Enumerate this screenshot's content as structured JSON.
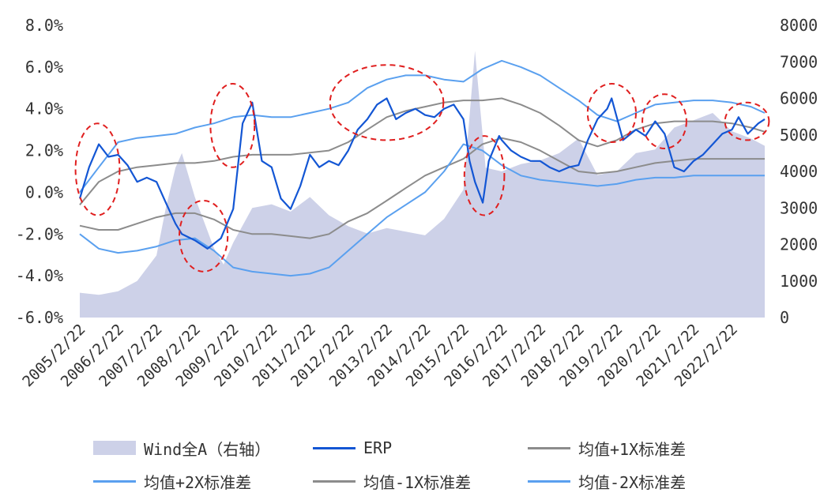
{
  "chart_data": {
    "type": "line",
    "title": "",
    "xlabel": "",
    "ylabel": "",
    "y_left": {
      "min": -6,
      "max": 8,
      "ticks": [
        "-6.0%",
        "-4.0%",
        "-2.0%",
        "0.0%",
        "2.0%",
        "4.0%",
        "6.0%",
        "8.0%"
      ]
    },
    "y_right": {
      "min": 0,
      "max": 8000,
      "ticks": [
        "0",
        "1000",
        "2000",
        "3000",
        "4000",
        "5000",
        "6000",
        "7000",
        "8000"
      ]
    },
    "x_range": [
      "2005-02-22",
      "2022-12-31"
    ],
    "x_ticks": [
      "2005/2/22",
      "2006/2/22",
      "2007/2/22",
      "2008/2/22",
      "2009/2/22",
      "2010/2/22",
      "2011/2/22",
      "2012/2/22",
      "2013/2/22",
      "2014/2/22",
      "2015/2/22",
      "2016/2/22",
      "2017/2/22",
      "2018/2/22",
      "2019/2/22",
      "2020/2/22",
      "2021/2/22",
      "2022/2/22"
    ],
    "grid": false,
    "legend_position": "bottom",
    "series": [
      {
        "name": "Wind全A（右轴）",
        "kind": "area",
        "axis": "right",
        "color": "#cdd1e8",
        "x": [
          "2005-02-22",
          "2005-08-22",
          "2006-02-22",
          "2006-08-22",
          "2007-02-22",
          "2007-05-22",
          "2007-08-22",
          "2007-10-22",
          "2008-02-22",
          "2008-08-22",
          "2008-11-22",
          "2009-02-22",
          "2009-08-22",
          "2010-02-22",
          "2010-08-22",
          "2011-02-22",
          "2011-08-22",
          "2012-02-22",
          "2012-08-22",
          "2013-02-22",
          "2013-08-22",
          "2014-02-22",
          "2014-08-22",
          "2015-02-22",
          "2015-06-12",
          "2015-09-22",
          "2016-02-22",
          "2016-08-22",
          "2017-02-22",
          "2017-08-22",
          "2018-02-22",
          "2018-08-22",
          "2019-02-22",
          "2019-08-22",
          "2020-02-22",
          "2020-08-22",
          "2021-02-22",
          "2021-08-22",
          "2022-02-22",
          "2022-08-22",
          "2022-12-31"
        ],
        "values": [
          680,
          620,
          720,
          1000,
          1700,
          3000,
          4100,
          4500,
          3300,
          1900,
          1450,
          2050,
          3000,
          3100,
          2900,
          3300,
          2800,
          2500,
          2300,
          2450,
          2350,
          2250,
          2700,
          3500,
          7300,
          4100,
          4000,
          4200,
          4300,
          4500,
          4900,
          3900,
          4000,
          4500,
          4600,
          5200,
          5400,
          5600,
          5100,
          4900,
          4700
        ]
      },
      {
        "name": "ERP",
        "kind": "line",
        "axis": "left",
        "color": "#1356d4",
        "x": [
          "2005-02-22",
          "2005-05-22",
          "2005-08-22",
          "2005-11-22",
          "2006-02-22",
          "2006-05-22",
          "2006-08-22",
          "2006-11-22",
          "2007-02-22",
          "2007-05-22",
          "2007-08-22",
          "2007-10-22",
          "2008-02-22",
          "2008-06-22",
          "2008-10-28",
          "2009-02-22",
          "2009-05-22",
          "2009-08-22",
          "2009-11-22",
          "2010-02-22",
          "2010-05-22",
          "2010-08-22",
          "2010-11-22",
          "2011-02-22",
          "2011-05-22",
          "2011-08-22",
          "2011-11-22",
          "2012-02-22",
          "2012-05-22",
          "2012-08-22",
          "2012-11-22",
          "2013-02-22",
          "2013-05-22",
          "2013-08-22",
          "2013-11-22",
          "2014-02-22",
          "2014-05-22",
          "2014-08-22",
          "2014-11-22",
          "2015-02-22",
          "2015-04-22",
          "2015-06-12",
          "2015-08-26",
          "2015-10-22",
          "2016-01-28",
          "2016-02-22",
          "2016-05-22",
          "2016-08-22",
          "2016-11-22",
          "2017-02-22",
          "2017-05-22",
          "2017-08-22",
          "2017-11-22",
          "2018-02-22",
          "2018-05-22",
          "2018-08-22",
          "2018-11-22",
          "2019-01-03",
          "2019-04-22",
          "2019-08-22",
          "2019-11-22",
          "2020-02-22",
          "2020-05-22",
          "2020-08-22",
          "2020-11-22",
          "2021-02-22",
          "2021-05-22",
          "2021-08-22",
          "2021-11-22",
          "2022-02-22",
          "2022-04-26",
          "2022-07-22",
          "2022-10-31",
          "2022-12-31"
        ],
        "values": [
          -0.3,
          1.2,
          2.3,
          1.7,
          1.8,
          1.3,
          0.5,
          0.7,
          0.5,
          -0.5,
          -1.5,
          -2.0,
          -2.3,
          -2.7,
          -2.2,
          -0.8,
          3.3,
          4.3,
          1.5,
          1.2,
          -0.3,
          -0.8,
          0.3,
          1.8,
          1.2,
          1.5,
          1.3,
          2.0,
          3.0,
          3.5,
          4.2,
          4.5,
          3.5,
          3.8,
          4.0,
          3.7,
          3.6,
          4.0,
          4.2,
          3.5,
          1.5,
          0.5,
          -0.5,
          1.5,
          2.7,
          2.5,
          2.0,
          1.7,
          1.5,
          1.5,
          1.2,
          1.0,
          1.2,
          1.3,
          2.5,
          3.5,
          4.0,
          4.5,
          2.5,
          3.0,
          2.7,
          3.4,
          2.8,
          1.2,
          1.0,
          1.5,
          1.8,
          2.3,
          2.8,
          3.0,
          3.6,
          2.8,
          3.3,
          3.5
        ]
      },
      {
        "name": "均值+1X标准差",
        "kind": "line",
        "axis": "left",
        "color": "#8c8c8c",
        "x": [
          "2005-02-22",
          "2005-08-22",
          "2006-02-22",
          "2006-08-22",
          "2007-02-22",
          "2007-08-22",
          "2008-02-22",
          "2008-08-22",
          "2009-02-22",
          "2009-08-22",
          "2010-02-22",
          "2010-08-22",
          "2011-02-22",
          "2011-08-22",
          "2012-02-22",
          "2012-08-22",
          "2013-02-22",
          "2013-08-22",
          "2014-02-22",
          "2014-08-22",
          "2015-02-22",
          "2015-08-22",
          "2016-02-22",
          "2016-08-22",
          "2017-02-22",
          "2017-08-22",
          "2018-02-22",
          "2018-08-22",
          "2019-02-22",
          "2019-08-22",
          "2020-02-22",
          "2020-08-22",
          "2021-02-22",
          "2021-08-22",
          "2022-02-22",
          "2022-08-22",
          "2022-12-31"
        ],
        "values": [
          -0.6,
          0.5,
          1.0,
          1.2,
          1.3,
          1.4,
          1.4,
          1.5,
          1.7,
          1.8,
          1.8,
          1.8,
          1.9,
          2.0,
          2.4,
          3.0,
          3.6,
          3.9,
          4.1,
          4.3,
          4.4,
          4.4,
          4.5,
          4.2,
          3.8,
          3.2,
          2.5,
          2.2,
          2.5,
          3.0,
          3.3,
          3.4,
          3.4,
          3.4,
          3.3,
          3.1,
          2.9
        ]
      },
      {
        "name": "均值+2X标准差",
        "kind": "line",
        "axis": "left",
        "color": "#5aa0ef",
        "x": [
          "2005-02-22",
          "2005-08-22",
          "2006-02-22",
          "2006-08-22",
          "2007-02-22",
          "2007-08-22",
          "2008-02-22",
          "2008-08-22",
          "2009-02-22",
          "2009-08-22",
          "2010-02-22",
          "2010-08-22",
          "2011-02-22",
          "2011-08-22",
          "2012-02-22",
          "2012-08-22",
          "2013-02-22",
          "2013-08-22",
          "2014-02-22",
          "2014-08-22",
          "2015-02-22",
          "2015-08-22",
          "2016-02-22",
          "2016-08-22",
          "2017-02-22",
          "2017-08-22",
          "2018-02-22",
          "2018-08-22",
          "2019-02-22",
          "2019-08-22",
          "2020-02-22",
          "2020-08-22",
          "2021-02-22",
          "2021-08-22",
          "2022-02-22",
          "2022-08-22",
          "2022-12-31"
        ],
        "values": [
          0.0,
          1.2,
          2.4,
          2.6,
          2.7,
          2.8,
          3.1,
          3.3,
          3.6,
          3.7,
          3.6,
          3.6,
          3.8,
          4.0,
          4.3,
          5.0,
          5.4,
          5.6,
          5.6,
          5.4,
          5.3,
          5.9,
          6.3,
          6.0,
          5.6,
          5.0,
          4.4,
          3.7,
          3.4,
          3.8,
          4.2,
          4.3,
          4.4,
          4.4,
          4.3,
          4.1,
          3.8
        ]
      },
      {
        "name": "均值-1X标准差",
        "kind": "line",
        "axis": "left",
        "color": "#8c8c8c",
        "x": [
          "2005-02-22",
          "2005-08-22",
          "2006-02-22",
          "2006-08-22",
          "2007-02-22",
          "2007-08-22",
          "2008-02-22",
          "2008-08-22",
          "2009-02-22",
          "2009-08-22",
          "2010-02-22",
          "2010-08-22",
          "2011-02-22",
          "2011-08-22",
          "2012-02-22",
          "2012-08-22",
          "2013-02-22",
          "2013-08-22",
          "2014-02-22",
          "2014-08-22",
          "2015-02-22",
          "2015-08-22",
          "2016-02-22",
          "2016-08-22",
          "2017-02-22",
          "2017-08-22",
          "2018-02-22",
          "2018-08-22",
          "2019-02-22",
          "2019-08-22",
          "2020-02-22",
          "2020-08-22",
          "2021-02-22",
          "2021-08-22",
          "2022-02-22",
          "2022-08-22",
          "2022-12-31"
        ],
        "values": [
          -1.6,
          -1.8,
          -1.8,
          -1.5,
          -1.2,
          -1.0,
          -1.0,
          -1.3,
          -1.8,
          -2.0,
          -2.0,
          -2.1,
          -2.2,
          -2.0,
          -1.4,
          -1.0,
          -0.4,
          0.2,
          0.8,
          1.2,
          1.6,
          2.3,
          2.6,
          2.4,
          2.0,
          1.5,
          1.0,
          0.9,
          1.0,
          1.2,
          1.4,
          1.5,
          1.6,
          1.6,
          1.6,
          1.6,
          1.6
        ]
      },
      {
        "name": "均值-2X标准差",
        "kind": "line",
        "axis": "left",
        "color": "#5aa0ef",
        "x": [
          "2005-02-22",
          "2005-08-22",
          "2006-02-22",
          "2006-08-22",
          "2007-02-22",
          "2007-08-22",
          "2008-02-22",
          "2008-08-22",
          "2009-02-22",
          "2009-08-22",
          "2010-02-22",
          "2010-08-22",
          "2011-02-22",
          "2011-08-22",
          "2012-02-22",
          "2012-08-22",
          "2013-02-22",
          "2013-08-22",
          "2014-02-22",
          "2014-08-22",
          "2015-02-22",
          "2015-08-22",
          "2016-02-22",
          "2016-08-22",
          "2017-02-22",
          "2017-08-22",
          "2018-02-22",
          "2018-08-22",
          "2019-02-22",
          "2019-08-22",
          "2020-02-22",
          "2020-08-22",
          "2021-02-22",
          "2021-08-22",
          "2022-02-22",
          "2022-08-22",
          "2022-12-31"
        ],
        "values": [
          -2.0,
          -2.7,
          -2.9,
          -2.8,
          -2.6,
          -2.3,
          -2.2,
          -2.8,
          -3.6,
          -3.8,
          -3.9,
          -4.0,
          -3.9,
          -3.6,
          -2.8,
          -2.0,
          -1.2,
          -0.6,
          0.0,
          1.0,
          2.3,
          2.0,
          1.3,
          0.8,
          0.6,
          0.5,
          0.4,
          0.3,
          0.4,
          0.6,
          0.7,
          0.7,
          0.8,
          0.8,
          0.8,
          0.8,
          0.8
        ]
      }
    ],
    "annotations": [
      {
        "kind": "dashed-ellipse",
        "color": "#e01f1f",
        "x_center": "2005-08-10",
        "y_center": 1.1,
        "x_halfwidth_days": 210,
        "y_halfheight": 2.2
      },
      {
        "kind": "dashed-ellipse",
        "color": "#e01f1f",
        "x_center": "2008-05-15",
        "y_center": -2.1,
        "x_halfwidth_days": 230,
        "y_halfheight": 1.7
      },
      {
        "kind": "dashed-ellipse",
        "color": "#e01f1f",
        "x_center": "2009-02-15",
        "y_center": 3.2,
        "x_halfwidth_days": 210,
        "y_halfheight": 2.0
      },
      {
        "kind": "dashed-ellipse",
        "color": "#e01f1f",
        "x_center": "2013-02-22",
        "y_center": 4.3,
        "x_halfwidth_days": 540,
        "y_halfheight": 1.8
      },
      {
        "kind": "dashed-ellipse",
        "color": "#e01f1f",
        "x_center": "2015-09-10",
        "y_center": 0.8,
        "x_halfwidth_days": 190,
        "y_halfheight": 1.9
      },
      {
        "kind": "dashed-ellipse",
        "color": "#e01f1f",
        "x_center": "2019-01-05",
        "y_center": 3.8,
        "x_halfwidth_days": 230,
        "y_halfheight": 1.4
      },
      {
        "kind": "dashed-ellipse",
        "color": "#e01f1f",
        "x_center": "2020-05-20",
        "y_center": 3.4,
        "x_halfwidth_days": 210,
        "y_halfheight": 1.3
      },
      {
        "kind": "dashed-ellipse",
        "color": "#e01f1f",
        "x_center": "2022-07-15",
        "y_center": 3.4,
        "x_halfwidth_days": 210,
        "y_halfheight": 0.9
      }
    ]
  }
}
